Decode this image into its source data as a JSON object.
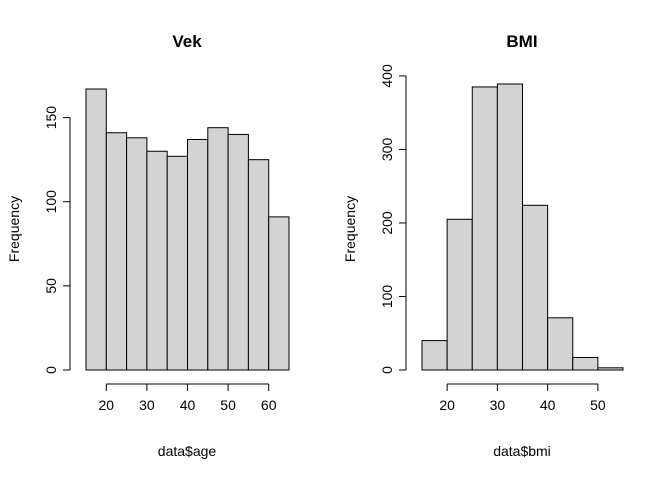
{
  "chart_data": [
    {
      "type": "bar",
      "title": "Vek",
      "xlabel": "data$age",
      "ylabel": "Frequency",
      "bins": [
        [
          15,
          20
        ],
        [
          20,
          25
        ],
        [
          25,
          30
        ],
        [
          30,
          35
        ],
        [
          35,
          40
        ],
        [
          40,
          45
        ],
        [
          45,
          50
        ],
        [
          50,
          55
        ],
        [
          55,
          60
        ],
        [
          60,
          65
        ]
      ],
      "values": [
        167,
        141,
        138,
        130,
        127,
        137,
        144,
        140,
        125,
        91
      ],
      "xlim": [
        15,
        65
      ],
      "ylim": [
        0,
        167
      ],
      "xticks": [
        20,
        30,
        40,
        50,
        60
      ],
      "yticks": [
        0,
        50,
        100,
        150
      ],
      "grid": false
    },
    {
      "type": "bar",
      "title": "BMI",
      "xlabel": "data$bmi",
      "ylabel": "Frequency",
      "bins": [
        [
          15,
          20
        ],
        [
          20,
          25
        ],
        [
          25,
          30
        ],
        [
          30,
          35
        ],
        [
          35,
          40
        ],
        [
          40,
          45
        ],
        [
          45,
          50
        ],
        [
          50,
          55
        ]
      ],
      "values": [
        40,
        205,
        385,
        389,
        224,
        71,
        17,
        3
      ],
      "xlim": [
        15,
        55
      ],
      "ylim": [
        0,
        389
      ],
      "xticks": [
        20,
        30,
        40,
        50
      ],
      "yticks": [
        0,
        100,
        200,
        300,
        400
      ],
      "grid": false
    }
  ]
}
